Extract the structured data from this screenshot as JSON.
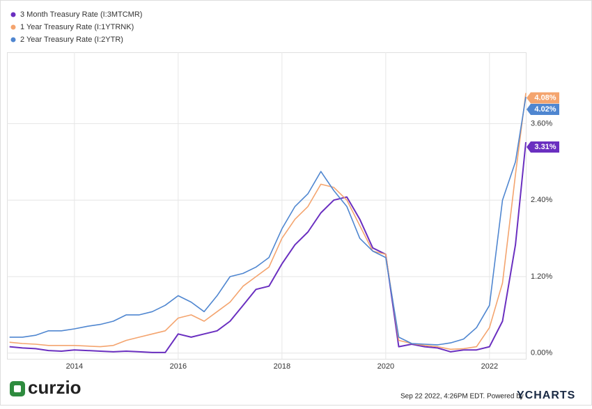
{
  "chart_data": {
    "type": "line",
    "x": [
      2012.75,
      2013,
      2013.25,
      2013.5,
      2013.75,
      2014,
      2014.25,
      2014.5,
      2014.75,
      2015,
      2015.25,
      2015.5,
      2015.75,
      2016,
      2016.25,
      2016.5,
      2016.75,
      2017,
      2017.25,
      2017.5,
      2017.75,
      2018,
      2018.25,
      2018.5,
      2018.75,
      2019,
      2019.25,
      2019.5,
      2019.75,
      2020,
      2020.25,
      2020.5,
      2020.75,
      2021,
      2021.25,
      2021.5,
      2021.75,
      2022,
      2022.25,
      2022.5,
      2022.7
    ],
    "series": [
      {
        "name": "3 Month Treasury Rate (I:3MTCMR)",
        "color": "#6a2fc0",
        "values": [
          0.1,
          0.08,
          0.07,
          0.04,
          0.03,
          0.05,
          0.04,
          0.03,
          0.02,
          0.03,
          0.02,
          0.01,
          0.01,
          0.3,
          0.25,
          0.3,
          0.35,
          0.5,
          0.75,
          1.0,
          1.05,
          1.4,
          1.7,
          1.9,
          2.2,
          2.4,
          2.45,
          2.1,
          1.65,
          1.55,
          0.1,
          0.14,
          0.1,
          0.08,
          0.02,
          0.05,
          0.05,
          0.1,
          0.5,
          1.7,
          3.31
        ],
        "value_labels": [
          null,
          null,
          null,
          null,
          null,
          null,
          null,
          null,
          null,
          null,
          null,
          null,
          null,
          null,
          null,
          null,
          null,
          null,
          null,
          null,
          null,
          null,
          null,
          null,
          null,
          null,
          null,
          null,
          null,
          null,
          null,
          null,
          null,
          null,
          null,
          null,
          null,
          null,
          null,
          null,
          "3.31%"
        ]
      },
      {
        "name": "1 Year Treasury Rate (I:1YTRNK)",
        "color": "#f4a46e",
        "values": [
          0.17,
          0.15,
          0.14,
          0.12,
          0.12,
          0.12,
          0.11,
          0.1,
          0.12,
          0.2,
          0.25,
          0.3,
          0.35,
          0.55,
          0.6,
          0.5,
          0.65,
          0.8,
          1.05,
          1.2,
          1.35,
          1.8,
          2.1,
          2.3,
          2.65,
          2.6,
          2.4,
          2.0,
          1.6,
          1.55,
          0.2,
          0.15,
          0.12,
          0.1,
          0.06,
          0.07,
          0.1,
          0.4,
          1.1,
          2.8,
          4.08
        ],
        "value_labels": [
          null,
          null,
          null,
          null,
          null,
          null,
          null,
          null,
          null,
          null,
          null,
          null,
          null,
          null,
          null,
          null,
          null,
          null,
          null,
          null,
          null,
          null,
          null,
          null,
          null,
          null,
          null,
          null,
          null,
          null,
          null,
          null,
          null,
          null,
          null,
          null,
          null,
          null,
          null,
          null,
          "4.08%"
        ]
      },
      {
        "name": "2 Year Treasury Rate (I:2YTR)",
        "color": "#4f86d0",
        "values": [
          0.25,
          0.25,
          0.28,
          0.35,
          0.35,
          0.38,
          0.42,
          0.45,
          0.5,
          0.6,
          0.6,
          0.65,
          0.75,
          0.9,
          0.8,
          0.65,
          0.9,
          1.2,
          1.25,
          1.35,
          1.5,
          1.95,
          2.3,
          2.5,
          2.85,
          2.55,
          2.3,
          1.8,
          1.6,
          1.5,
          0.25,
          0.15,
          0.14,
          0.13,
          0.16,
          0.22,
          0.4,
          0.75,
          2.4,
          3.0,
          4.02
        ],
        "value_labels": [
          null,
          null,
          null,
          null,
          null,
          null,
          null,
          null,
          null,
          null,
          null,
          null,
          null,
          null,
          null,
          null,
          null,
          null,
          null,
          null,
          null,
          null,
          null,
          null,
          null,
          null,
          null,
          null,
          null,
          null,
          null,
          null,
          null,
          null,
          null,
          null,
          null,
          null,
          null,
          null,
          "4.02%"
        ]
      }
    ],
    "xlim": [
      2012.7,
      2022.7
    ],
    "xticks": [
      2014,
      2016,
      2018,
      2020,
      2022
    ],
    "ylim": [
      -0.09,
      4.72
    ],
    "yticks": [
      {
        "value": 0,
        "label": "0.00%"
      },
      {
        "value": 1.2,
        "label": "1.20%"
      },
      {
        "value": 2.4,
        "label": "2.40%"
      },
      {
        "value": 3.6,
        "label": "3.60%"
      }
    ],
    "grid": true,
    "logo": "curzio",
    "source_note": "Sep 22 2022, 4:26PM EDT.  Powered by",
    "brand": "YCHARTS"
  }
}
